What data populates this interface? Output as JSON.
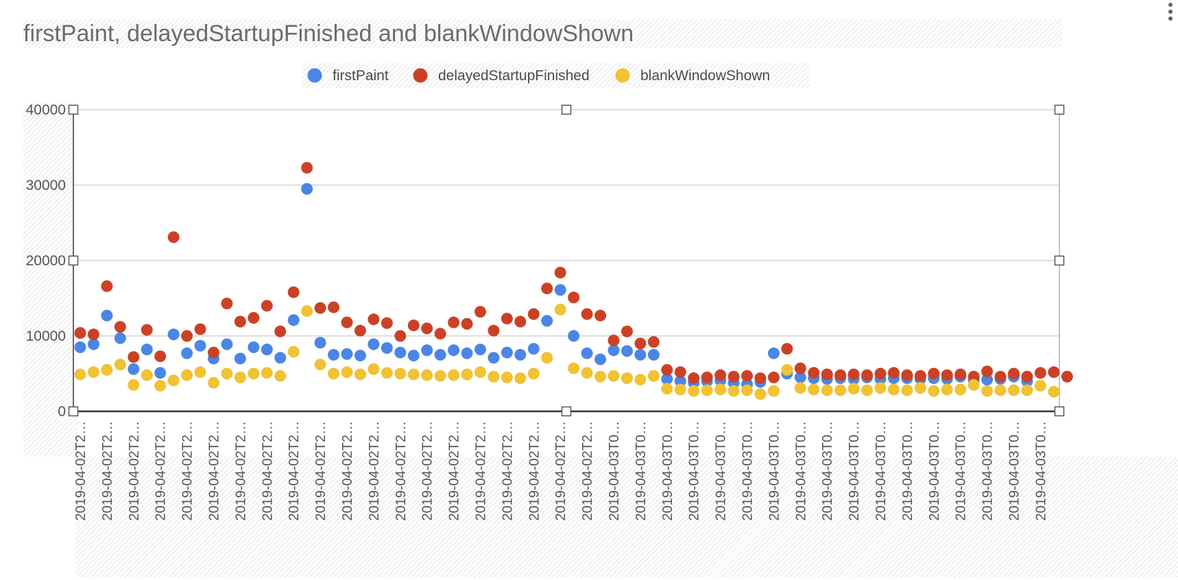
{
  "title": "firstPaint, delayedStartupFinished and blankWindowShown",
  "more_menu_icon": "more-vert-icon",
  "chart_data": {
    "type": "scatter",
    "title": "firstPaint, delayedStartupFinished and blankWindowShown",
    "xlabel": "",
    "ylabel": "",
    "ylim": [
      0,
      40000
    ],
    "yticks": [
      0,
      10000,
      20000,
      30000,
      40000
    ],
    "ytick_labels": [
      "0",
      "10000",
      "20000",
      "30000",
      "40000"
    ],
    "grid": true,
    "legend_position": "top",
    "x_tick_labels": [
      "2019-04-02T2…",
      "2019-04-02T2…",
      "2019-04-02T2…",
      "2019-04-02T2…",
      "2019-04-02T2…",
      "2019-04-02T2…",
      "2019-04-02T2…",
      "2019-04-02T2…",
      "2019-04-02T2…",
      "2019-04-02T2…",
      "2019-04-02T2…",
      "2019-04-02T2…",
      "2019-04-02T2…",
      "2019-04-02T2…",
      "2019-04-02T2…",
      "2019-04-02T2…",
      "2019-04-02T2…",
      "2019-04-02T2…",
      "2019-04-02T2…",
      "2019-04-02T2…",
      "2019-04-03T0…",
      "2019-04-03T0…",
      "2019-04-03T0…",
      "2019-04-03T0…",
      "2019-04-03T0…",
      "2019-04-03T0…",
      "2019-04-03T0…",
      "2019-04-03T0…",
      "2019-04-03T0…",
      "2019-04-03T0…",
      "2019-04-03T0…",
      "2019-04-03T0…",
      "2019-04-03T0…",
      "2019-04-03T0…",
      "2019-04-03T0…",
      "2019-04-03T0…",
      "2019-04-03T0…"
    ],
    "series": [
      {
        "name": "firstPaint",
        "color": "#4a86e8",
        "values": [
          8500,
          8900,
          12700,
          9700,
          5600,
          8200,
          5100,
          10200,
          7700,
          8700,
          7000,
          8900,
          7000,
          8500,
          8200,
          7100,
          12100,
          29500,
          9100,
          7500,
          7600,
          7400,
          8900,
          8400,
          7800,
          7400,
          8100,
          7500,
          8100,
          7700,
          8200,
          7100,
          7800,
          7500,
          8300,
          12000,
          16100,
          10000,
          7700,
          6900,
          8100,
          8000,
          7500,
          7500,
          4300,
          4000,
          3800,
          4000,
          4100,
          3800,
          3600,
          3900,
          7700,
          5000,
          4500,
          4400,
          4300,
          4400,
          4300,
          4500,
          4300,
          4400,
          4400,
          4300,
          4400,
          4300,
          4600,
          4100,
          4200,
          4300,
          4600,
          4000
        ]
      },
      {
        "name": "delayedStartupFinished",
        "color": "#cc4125",
        "values": [
          10400,
          10200,
          16600,
          11200,
          7200,
          10800,
          7300,
          23100,
          10000,
          10900,
          7800,
          14300,
          11900,
          12400,
          14000,
          10600,
          15800,
          32300,
          13700,
          13800,
          11800,
          10700,
          12200,
          11700,
          10000,
          11400,
          11000,
          10300,
          11800,
          11600,
          13200,
          10700,
          12300,
          11900,
          12900,
          16300,
          18400,
          15100,
          12900,
          12700,
          9400,
          10600,
          9000,
          9200,
          5500,
          5200,
          4400,
          4500,
          4800,
          4600,
          4700,
          4400,
          4500,
          8300,
          5700,
          5100,
          4900,
          4800,
          4900,
          4800,
          5000,
          5100,
          4800,
          4700,
          5000,
          4800,
          4900,
          4600,
          5300,
          4600,
          5000,
          4600,
          5100,
          5200,
          4600
        ]
      },
      {
        "name": "blankWindowShown",
        "color": "#f1c232",
        "values": [
          4900,
          5200,
          5500,
          6200,
          3500,
          4800,
          3400,
          4100,
          4800,
          5200,
          3800,
          5000,
          4500,
          5000,
          5100,
          4700,
          7900,
          13300,
          6200,
          5000,
          5200,
          4900,
          5600,
          5100,
          5000,
          4900,
          4800,
          4700,
          4800,
          4900,
          5200,
          4600,
          4500,
          4400,
          5000,
          7100,
          13500,
          5700,
          5100,
          4600,
          4700,
          4400,
          4200,
          4700,
          3000,
          2900,
          2700,
          2800,
          2900,
          2700,
          2800,
          2300,
          2700,
          5500,
          3100,
          2900,
          2800,
          2800,
          3000,
          2800,
          3100,
          2900,
          2800,
          3100,
          2700,
          2900,
          2900,
          3500,
          2700,
          2800,
          2800,
          2800,
          3400,
          2600
        ]
      }
    ]
  }
}
